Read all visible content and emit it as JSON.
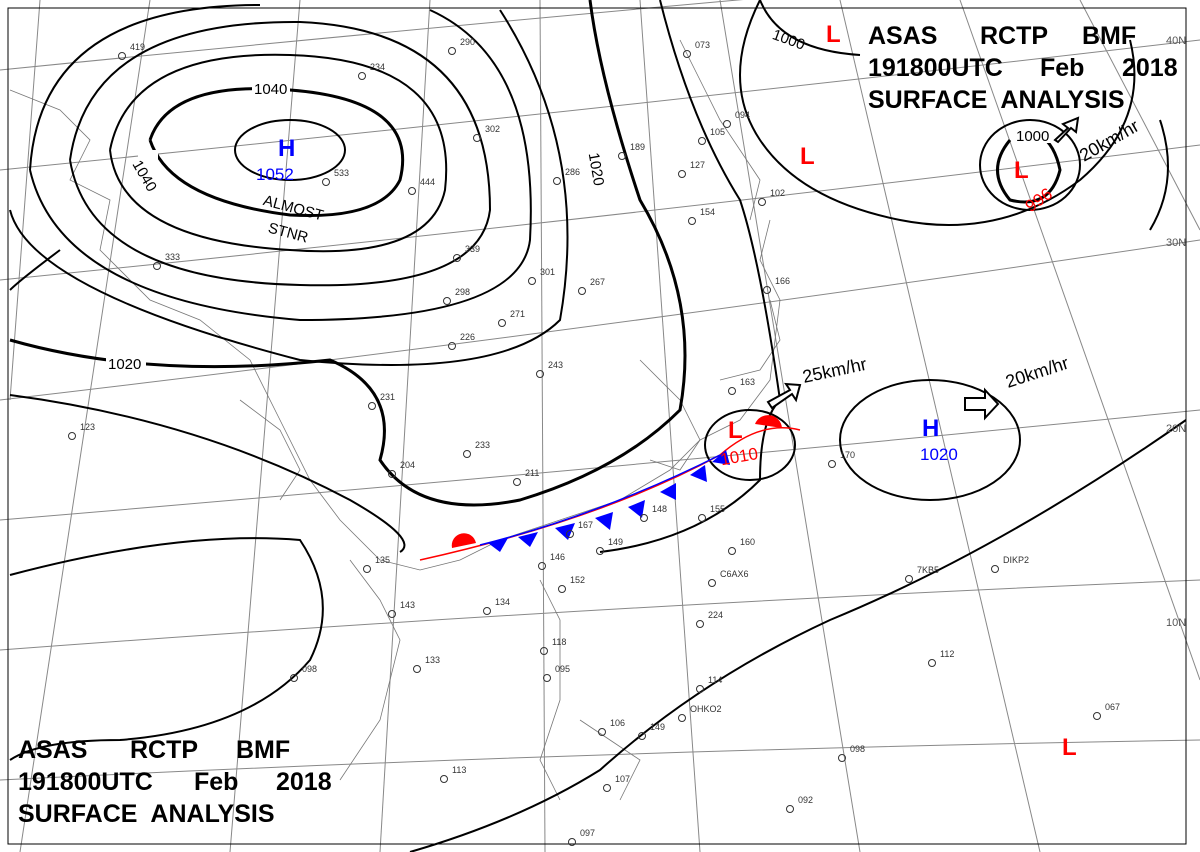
{
  "title": {
    "line1": [
      "ASAS",
      "RCTP",
      "BMF"
    ],
    "line2": [
      "191800UTC",
      "Feb",
      "2018"
    ],
    "line3": "SURFACE  ANALYSIS"
  },
  "latitudes": [
    "40N",
    "30N",
    "20N",
    "10N"
  ],
  "isobar_labels": [
    "1040",
    "1040",
    "1020",
    "1020",
    "1000",
    "1000"
  ],
  "systems": [
    {
      "type": "H",
      "value": "1052",
      "color": "#0000ff"
    },
    {
      "type": "L",
      "value": "1010",
      "color": "#ff0000"
    },
    {
      "type": "H",
      "value": "1020",
      "color": "#0000ff"
    },
    {
      "type": "L",
      "value": "996",
      "color": "#ff0000"
    },
    {
      "type": "L",
      "value": "",
      "color": "#ff0000"
    },
    {
      "type": "L",
      "value": "",
      "color": "#ff0000"
    },
    {
      "type": "L",
      "value": "",
      "color": "#ff0000"
    }
  ],
  "movement": {
    "stnr_line1": "ALMOST",
    "stnr_line2": "STNR",
    "speed1": "25km/hr",
    "speed2": "20km/hr",
    "speed3": "20km/hr"
  },
  "stations": [
    "419",
    "290",
    "234",
    "302",
    "286",
    "444",
    "533",
    "339",
    "298",
    "301",
    "267",
    "271",
    "226",
    "243",
    "231",
    "233",
    "204",
    "211",
    "170",
    "167",
    "149",
    "148",
    "155",
    "160",
    "135",
    "146",
    "152",
    "143",
    "134",
    "118",
    "095",
    "133",
    "098",
    "224",
    "114",
    "106",
    "149",
    "107",
    "113",
    "097",
    "092",
    "098",
    "112",
    "067",
    "123",
    "333",
    "189",
    "127",
    "105",
    "094",
    "154",
    "102",
    "166",
    "163",
    "073",
    "C6AX6",
    "7KB5",
    "DIKP2",
    "OHKO2"
  ],
  "colors": {
    "high": "#0000ff",
    "low": "#ff0000",
    "warm_front": "#ff0000",
    "cold_front": "#0000ff"
  }
}
